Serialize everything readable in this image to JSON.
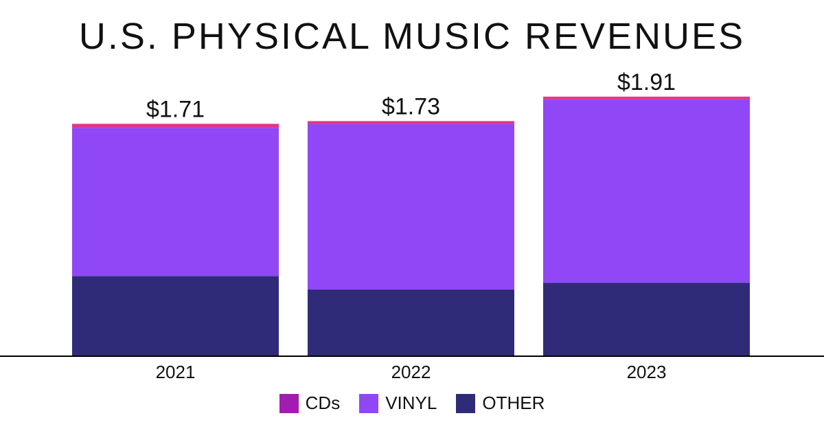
{
  "chart_data": {
    "type": "bar",
    "stacked": true,
    "title": "U.S. PHYSICAL MUSIC REVENUES",
    "categories": [
      "2021",
      "2022",
      "2023"
    ],
    "totals_labels": [
      "$1.71",
      "$1.73",
      "$1.91"
    ],
    "totals": [
      1.71,
      1.73,
      1.91
    ],
    "series": [
      {
        "name": "OTHER",
        "color": "#302b78",
        "values": [
          0.59,
          0.49,
          0.54
        ]
      },
      {
        "name": "VINYL",
        "color": "#9047f5",
        "values": [
          1.09,
          1.22,
          1.35
        ]
      },
      {
        "name": "CDs",
        "color": "#e0368a",
        "values": [
          0.03,
          0.02,
          0.02
        ]
      }
    ],
    "legend": [
      {
        "label": "CDs",
        "color": "#a21caf"
      },
      {
        "label": "VINYL",
        "color": "#9047f5"
      },
      {
        "label": "OTHER",
        "color": "#302b78"
      }
    ],
    "ylim": [
      0,
      2.0
    ],
    "grid": false,
    "legend_position": "bottom"
  }
}
